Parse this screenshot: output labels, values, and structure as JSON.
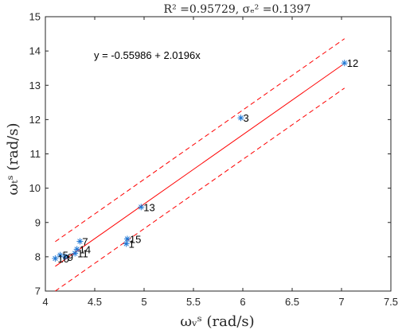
{
  "chart_data": {
    "type": "scatter",
    "title": "R² =0.95729, σₑ² =0.1397",
    "xlabel": "ωᵥˢ (rad/s)",
    "ylabel": "ωₜˢ (rad/s)",
    "xlim": [
      4,
      7.5
    ],
    "ylim": [
      7,
      15
    ],
    "xticks": [
      4,
      4.5,
      5,
      5.5,
      6,
      6.5,
      7,
      7.5
    ],
    "yticks": [
      7,
      8,
      9,
      10,
      11,
      12,
      13,
      14,
      15
    ],
    "xtick_labels": [
      "4",
      "4.5",
      "5",
      "5.5",
      "6",
      "6.5",
      "7",
      "7.5"
    ],
    "ytick_labels": [
      "7",
      "8",
      "9",
      "10",
      "11",
      "12",
      "13",
      "14",
      "15"
    ],
    "grid": false,
    "equation": "y = -0.55986 + 2.0196x",
    "fit": {
      "intercept": -0.55986,
      "slope": 2.0196,
      "x_range": [
        4.1,
        7.03
      ],
      "band_offset": 0.72
    },
    "points": [
      {
        "label": "1",
        "x": 4.82,
        "y": 8.38
      },
      {
        "label": "3",
        "x": 5.98,
        "y": 12.05
      },
      {
        "label": "5",
        "x": 4.15,
        "y": 8.05
      },
      {
        "label": "7",
        "x": 4.35,
        "y": 8.45
      },
      {
        "label": "9",
        "x": 4.2,
        "y": 8.0
      },
      {
        "label": "10",
        "x": 4.1,
        "y": 7.95
      },
      {
        "label": "11",
        "x": 4.3,
        "y": 8.1
      },
      {
        "label": "12",
        "x": 7.03,
        "y": 13.65
      },
      {
        "label": "13",
        "x": 4.97,
        "y": 9.45
      },
      {
        "label": "14",
        "x": 4.32,
        "y": 8.22
      },
      {
        "label": "15",
        "x": 4.83,
        "y": 8.52
      }
    ],
    "colors": {
      "points": "#1f77d4",
      "fit": "#ff0000",
      "axes": "#262626"
    }
  }
}
